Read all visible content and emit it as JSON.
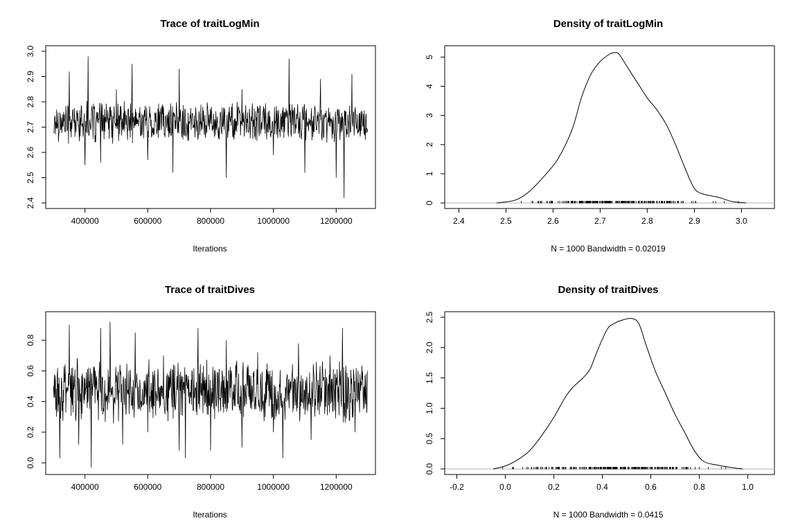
{
  "chart_data": [
    {
      "type": "line",
      "title": "Trace of traitLogMin",
      "xlabel": "Iterations",
      "ylabel": "",
      "xlim": [
        275000,
        1325000
      ],
      "ylim": [
        2.4,
        3.0
      ],
      "xticks": [
        400000,
        600000,
        800000,
        1000000,
        1200000
      ],
      "xticklabels": [
        "400000",
        "600000",
        "800000",
        "1000000",
        "1200000"
      ],
      "yticks": [
        2.4,
        2.5,
        2.6,
        2.7,
        2.8,
        2.9,
        3.0
      ],
      "yticklabels": [
        "2.4",
        "2.5",
        "2.6",
        "2.7",
        "2.8",
        "2.9",
        "3.0"
      ],
      "grid": false,
      "series": [
        {
          "x": [
            300000,
            350000,
            400000,
            410000,
            450000,
            500000,
            550000,
            600000,
            650000,
            680000,
            700000,
            750000,
            800000,
            850000,
            900000,
            950000,
            1000000,
            1050000,
            1100000,
            1150000,
            1200000,
            1225000,
            1250000,
            1300000
          ],
          "values": [
            2.68,
            2.92,
            2.55,
            2.98,
            2.56,
            2.85,
            2.95,
            2.57,
            2.78,
            2.52,
            2.93,
            2.66,
            2.74,
            2.5,
            2.85,
            2.78,
            2.59,
            2.97,
            2.52,
            2.89,
            2.5,
            2.42,
            2.91,
            2.68
          ]
        }
      ]
    },
    {
      "type": "area",
      "title": "Density of traitLogMin",
      "xlabel": "N = 1000   Bandwidth = 0.02019",
      "ylabel": "",
      "xlim": [
        2.37,
        3.07
      ],
      "ylim": [
        0,
        5.2
      ],
      "xticks": [
        2.4,
        2.5,
        2.6,
        2.7,
        2.8,
        2.9,
        3.0
      ],
      "xticklabels": [
        "2.4",
        "2.5",
        "2.6",
        "2.7",
        "2.8",
        "2.9",
        "3.0"
      ],
      "yticks": [
        0,
        1,
        2,
        3,
        4,
        5
      ],
      "yticklabels": [
        "0",
        "1",
        "2",
        "3",
        "4",
        "5"
      ],
      "grid": false,
      "series": [
        {
          "x": [
            2.48,
            2.52,
            2.55,
            2.58,
            2.61,
            2.64,
            2.66,
            2.68,
            2.7,
            2.72,
            2.73,
            2.74,
            2.76,
            2.78,
            2.8,
            2.82,
            2.84,
            2.86,
            2.88,
            2.9,
            2.92,
            2.95,
            2.98,
            3.01
          ],
          "values": [
            0.0,
            0.1,
            0.4,
            0.9,
            1.5,
            2.5,
            3.6,
            4.4,
            4.85,
            5.1,
            5.15,
            5.1,
            4.6,
            4.1,
            3.6,
            3.2,
            2.7,
            2.0,
            1.2,
            0.5,
            0.3,
            0.2,
            0.05,
            0.0
          ]
        }
      ]
    },
    {
      "type": "line",
      "title": "Trace of traitDives",
      "xlabel": "Iterations",
      "ylabel": "",
      "xlim": [
        275000,
        1325000
      ],
      "ylim": [
        -0.04,
        0.95
      ],
      "xticks": [
        400000,
        600000,
        800000,
        1000000,
        1200000
      ],
      "xticklabels": [
        "400000",
        "600000",
        "800000",
        "1000000",
        "1200000"
      ],
      "yticks": [
        0.0,
        0.2,
        0.4,
        0.6,
        0.8
      ],
      "yticklabels": [
        "0.0",
        "0.2",
        "0.4",
        "0.6",
        "0.8"
      ],
      "grid": false,
      "series": [
        {
          "x": [
            300000,
            320000,
            350000,
            380000,
            400000,
            420000,
            450000,
            480000,
            520000,
            560000,
            600000,
            650000,
            700000,
            720000,
            760000,
            800000,
            850000,
            900000,
            950000,
            1000000,
            1030000,
            1080000,
            1120000,
            1180000,
            1220000,
            1260000,
            1300000
          ],
          "values": [
            0.5,
            0.03,
            0.9,
            0.12,
            0.55,
            -0.03,
            0.88,
            0.92,
            0.12,
            0.85,
            0.2,
            0.7,
            0.08,
            0.03,
            0.88,
            0.08,
            0.8,
            0.1,
            0.72,
            0.2,
            0.03,
            0.78,
            0.15,
            0.7,
            0.88,
            0.2,
            0.6
          ]
        }
      ]
    },
    {
      "type": "area",
      "title": "Density of traitDives",
      "xlabel": "N = 1000   Bandwidth = 0.0415",
      "ylabel": "",
      "xlim": [
        -0.25,
        1.11
      ],
      "ylim": [
        0,
        2.5
      ],
      "xticks": [
        -0.2,
        0.0,
        0.2,
        0.4,
        0.6,
        0.8,
        1.0
      ],
      "xticklabels": [
        "-0.2",
        "0.0",
        "0.2",
        "0.4",
        "0.6",
        "0.8",
        "1.0"
      ],
      "yticks": [
        0.0,
        0.5,
        1.0,
        1.5,
        2.0,
        2.5
      ],
      "yticklabels": [
        "0.0",
        "0.5",
        "1.0",
        "1.5",
        "2.0",
        "2.5"
      ],
      "grid": false,
      "series": [
        {
          "x": [
            -0.05,
            0.0,
            0.05,
            0.1,
            0.15,
            0.2,
            0.25,
            0.28,
            0.32,
            0.35,
            0.38,
            0.42,
            0.45,
            0.48,
            0.52,
            0.55,
            0.58,
            0.62,
            0.66,
            0.7,
            0.74,
            0.78,
            0.82,
            0.88,
            0.94,
            0.98
          ],
          "values": [
            0.0,
            0.05,
            0.15,
            0.3,
            0.55,
            0.85,
            1.2,
            1.35,
            1.5,
            1.65,
            1.95,
            2.3,
            2.4,
            2.45,
            2.48,
            2.4,
            2.05,
            1.6,
            1.25,
            0.9,
            0.6,
            0.3,
            0.12,
            0.06,
            0.02,
            0.0
          ]
        }
      ]
    }
  ]
}
